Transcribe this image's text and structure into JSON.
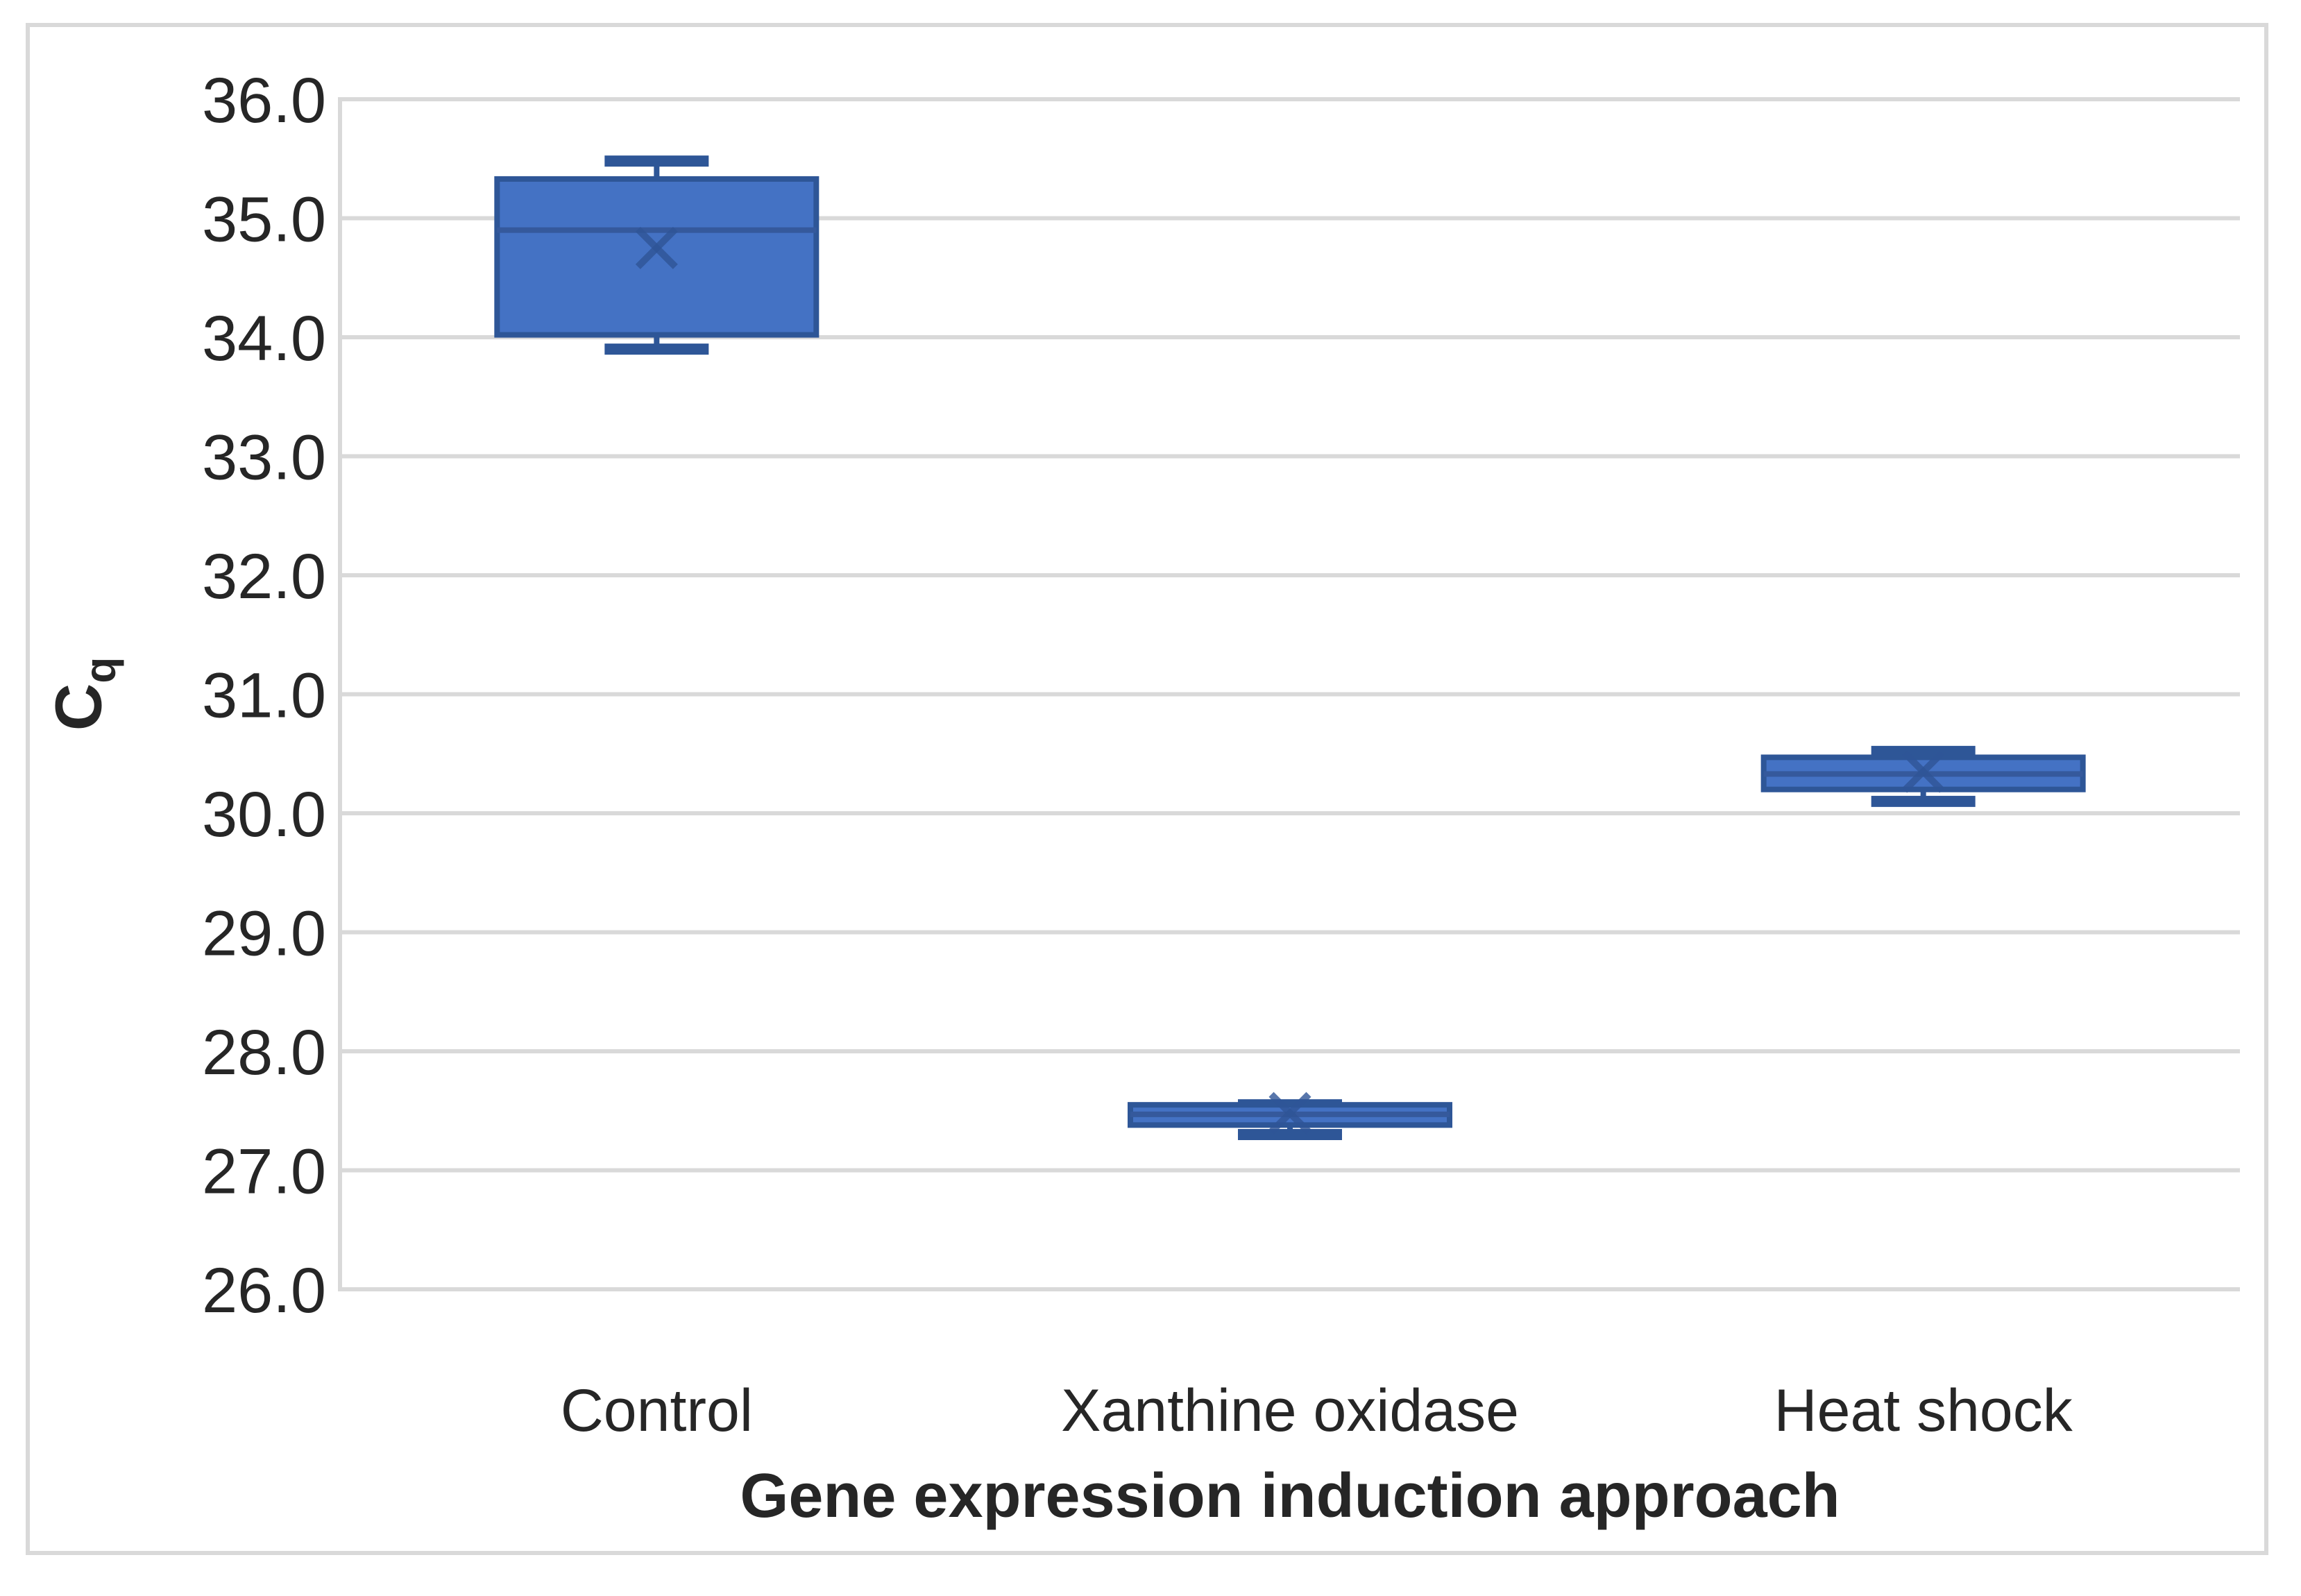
{
  "chart_data": {
    "type": "boxplot",
    "title": "",
    "xlabel": "Gene expression induction approach",
    "ylabel_base": "C",
    "ylabel_sub": "q",
    "categories": [
      "Control",
      "Xanthine oxidase",
      "Heat shock"
    ],
    "y_axis": {
      "min": 26.0,
      "max": 36.0,
      "step": 1.0,
      "tick_labels": [
        "36.0",
        "35.0",
        "34.0",
        "33.0",
        "32.0",
        "31.0",
        "30.0",
        "29.0",
        "28.0",
        "27.0",
        "26.0"
      ],
      "grid": true
    },
    "series": [
      {
        "category": "Control",
        "whisker_low": 33.9,
        "q1": 34.02,
        "median": 34.9,
        "mean": 34.75,
        "q3": 35.33,
        "whisker_high": 35.48
      },
      {
        "category": "Xanthine oxidase",
        "whisker_low": 27.3,
        "q1": 27.38,
        "median": 27.47,
        "mean": 27.48,
        "q3": 27.55,
        "whisker_high": 27.55
      },
      {
        "category": "Heat shock",
        "whisker_low": 30.1,
        "q1": 30.2,
        "median": 30.33,
        "mean": 30.35,
        "q3": 30.47,
        "whisker_high": 30.52
      }
    ],
    "colors": {
      "box_fill": "#4472c4",
      "box_border": "#2e5697",
      "median_line": "#35599c",
      "whisker": "#2e5697",
      "mean_marker": "#2f5597",
      "gridline": "#d9d9d9",
      "axis_line": "#d9d9d9",
      "text": "#262626",
      "frame_border": "#d9d9d9",
      "background": "#ffffff"
    },
    "legend": null
  }
}
